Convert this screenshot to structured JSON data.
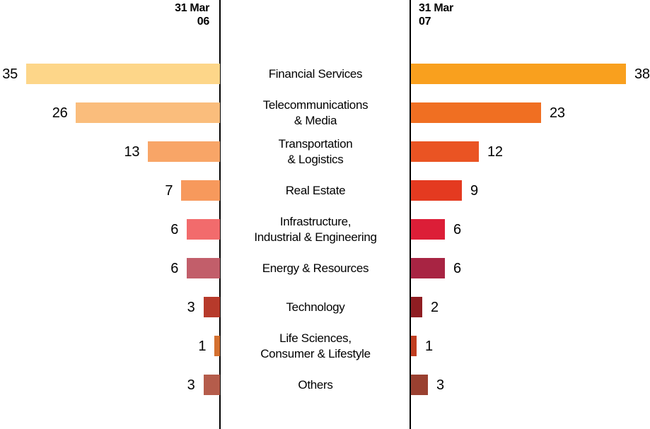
{
  "chart_data": {
    "type": "bar",
    "variant": "butterfly-horizontal",
    "title": "",
    "left_header": "31 Mar\n06",
    "right_header": "31 Mar\n07",
    "categories": [
      "Financial Services",
      "Telecommunications\n& Media",
      "Transportation\n& Logistics",
      "Real Estate",
      "Infrastructure,\nIndustrial & Engineering",
      "Energy & Resources",
      "Technology",
      "Life Sciences,\nConsumer & Lifestyle",
      "Others"
    ],
    "series": [
      {
        "name": "31 Mar 06",
        "side": "left",
        "values": [
          35,
          26,
          13,
          7,
          6,
          6,
          3,
          1,
          3
        ],
        "colors": [
          "#FDD689",
          "#FABD7C",
          "#F8A567",
          "#F7995C",
          "#F26B6C",
          "#C25E6A",
          "#B73A2B",
          "#D4702F",
          "#B55C4B"
        ]
      },
      {
        "name": "31 Mar 07",
        "side": "right",
        "values": [
          38,
          23,
          12,
          9,
          6,
          6,
          2,
          1,
          3
        ],
        "colors": [
          "#F9A01E",
          "#F06F22",
          "#EA5423",
          "#E43A20",
          "#DC1E37",
          "#A82443",
          "#8F1D22",
          "#C03D20",
          "#9A4030"
        ]
      }
    ],
    "axis_color": "#000000",
    "background": "#FFFFFF",
    "grid": "off",
    "legend": "none",
    "value_labels": "outside-bar-ends",
    "xlim_left": [
      0,
      35
    ],
    "xlim_right": [
      0,
      38
    ]
  }
}
